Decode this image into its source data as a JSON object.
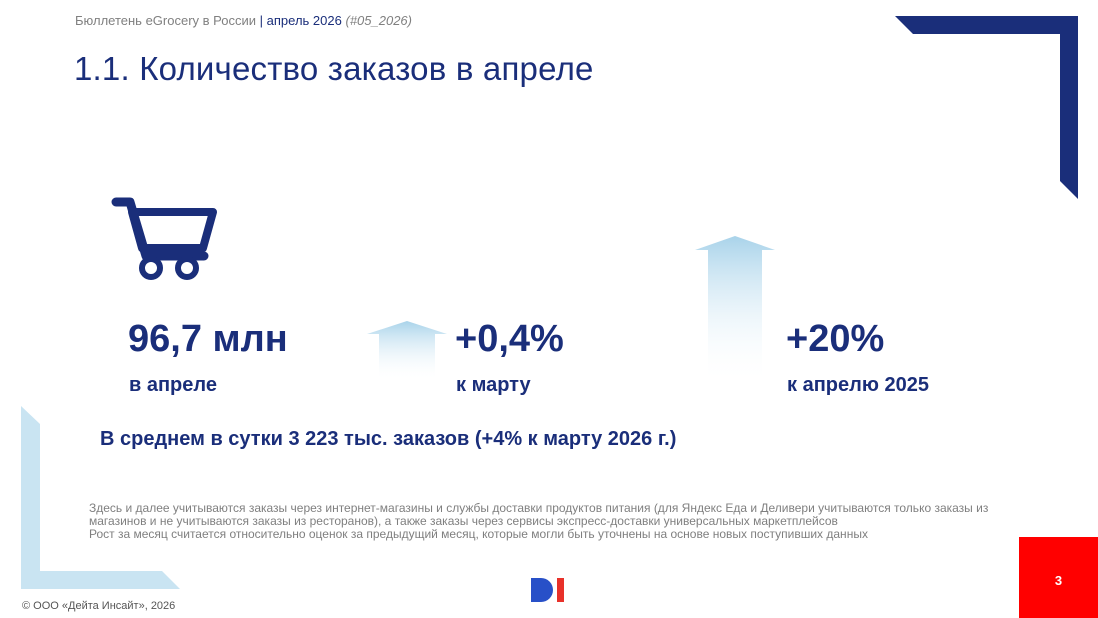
{
  "header": {
    "bulletin": "Бюллетень eGrocery в России",
    "separator": "|",
    "month": "апрель 2026",
    "issue": "(#05_2026)"
  },
  "title": "1.1. Количество заказов в апреле",
  "metrics": [
    {
      "value": "96,7 млн",
      "label": "в апреле"
    },
    {
      "value": "+0,4%",
      "label": "к марту"
    },
    {
      "value": "+20%",
      "label": "к апрелю 2025"
    }
  ],
  "daily_summary": "В среднем в сутки 3 223 тыс. заказов (+4% к марту 2026 г.)",
  "notes": [
    "Здесь и далее учитываются заказы через интернет-магазины и службы доставки продуктов питания (для Яндекс Еда и Деливери учитываются только заказы из магазинов и не учитываются заказы из ресторанов), а также заказы через сервисы экспресс-доставки универсальных маркетплейсов",
    "Рост за месяц считается относительно оценок за предыдущий месяц, которые могли быть уточнены на основе новых поступивших данных"
  ],
  "footer": {
    "copyright": "© ООО «Дейта Инсайт», 2026",
    "page_number": "3"
  },
  "icons": {
    "cart": "shopping-cart-icon",
    "arrow_small": "arrow-up-icon",
    "arrow_tall": "arrow-up-icon",
    "logo": "data-insight-logo"
  },
  "colors": {
    "brand_navy": "#1a2e7a",
    "accent_red": "#ff0000",
    "light_blue": "#c9e4f2",
    "logo_blue": "#2850c8",
    "logo_red": "#e8312a",
    "note_gray": "#7f7f7f"
  }
}
